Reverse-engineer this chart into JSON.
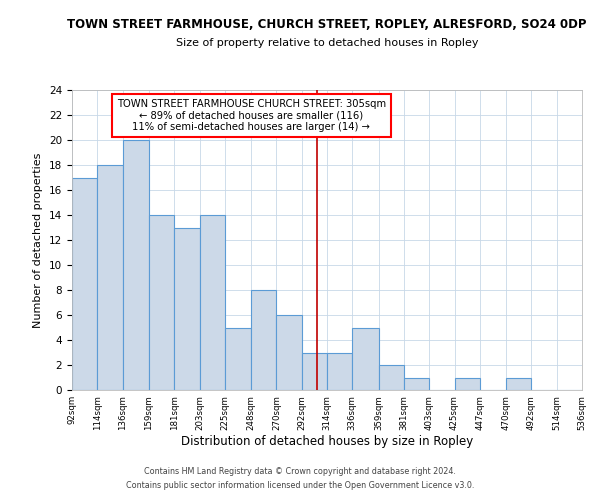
{
  "title": "TOWN STREET FARMHOUSE, CHURCH STREET, ROPLEY, ALRESFORD, SO24 0DP",
  "subtitle": "Size of property relative to detached houses in Ropley",
  "xlabel": "Distribution of detached houses by size in Ropley",
  "ylabel": "Number of detached properties",
  "bar_edges": [
    92,
    114,
    136,
    159,
    181,
    203,
    225,
    248,
    270,
    292,
    314,
    336,
    359,
    381,
    403,
    425,
    447,
    470,
    492,
    514,
    536
  ],
  "bar_heights": [
    17,
    18,
    20,
    14,
    13,
    14,
    5,
    8,
    6,
    3,
    3,
    5,
    2,
    1,
    0,
    1,
    0,
    1,
    0,
    0
  ],
  "bar_color": "#ccd9e8",
  "bar_edge_color": "#5b9bd5",
  "property_line_x": 305,
  "property_line_color": "#c00000",
  "ylim": [
    0,
    24
  ],
  "yticks": [
    0,
    2,
    4,
    6,
    8,
    10,
    12,
    14,
    16,
    18,
    20,
    22,
    24
  ],
  "annotation_title": "TOWN STREET FARMHOUSE CHURCH STREET: 305sqm",
  "annotation_line1": "← 89% of detached houses are smaller (116)",
  "annotation_line2": "11% of semi-detached houses are larger (14) →",
  "footer_line1": "Contains HM Land Registry data © Crown copyright and database right 2024.",
  "footer_line2": "Contains public sector information licensed under the Open Government Licence v3.0.",
  "background_color": "#ffffff",
  "grid_color": "#c8d8e8"
}
